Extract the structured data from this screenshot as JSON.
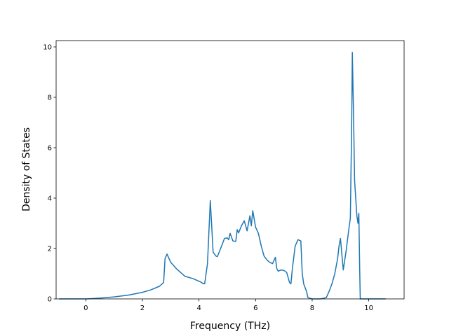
{
  "chart_data": {
    "type": "line",
    "title": "",
    "xlabel": "Frequency (THz)",
    "ylabel": "Density of States",
    "xlim": [
      -1.05,
      11.25
    ],
    "ylim": [
      0,
      10.25
    ],
    "xticks": [
      0,
      2,
      4,
      6,
      8,
      10
    ],
    "yticks": [
      0,
      2,
      4,
      6,
      8,
      10
    ],
    "xtick_labels": [
      "0",
      "2",
      "4",
      "6",
      "8",
      "10"
    ],
    "ytick_labels": [
      "0",
      "2",
      "4",
      "6",
      "8",
      "10"
    ],
    "grid": false,
    "line_color": "#1f77b4",
    "series": [
      {
        "x": [
          -0.95,
          -0.5,
          0,
          0.2,
          0.5,
          1.0,
          1.5,
          2.0,
          2.3,
          2.6,
          2.75,
          2.8,
          2.87,
          3.0,
          3.1,
          3.2,
          3.5,
          3.8,
          4.0,
          4.08,
          4.15,
          4.2,
          4.3,
          4.4,
          4.5,
          4.6,
          4.65,
          4.8,
          4.9,
          5.0,
          5.05,
          5.1,
          5.2,
          5.3,
          5.35,
          5.4,
          5.5,
          5.6,
          5.7,
          5.8,
          5.85,
          5.9,
          6.0,
          6.1,
          6.2,
          6.3,
          6.4,
          6.5,
          6.6,
          6.7,
          6.75,
          6.8,
          6.9,
          7.0,
          7.1,
          7.2,
          7.25,
          7.3,
          7.4,
          7.5,
          7.6,
          7.65,
          7.7,
          7.8,
          7.85,
          8.0,
          8.3,
          8.5,
          8.6,
          8.7,
          8.8,
          8.9,
          8.95,
          9.0,
          9.1,
          9.2,
          9.3,
          9.35,
          9.4,
          9.42,
          9.46,
          9.5,
          9.58,
          9.62,
          9.65,
          9.68,
          9.7,
          10.0,
          10.6
        ],
        "y": [
          0,
          0,
          0,
          0.01,
          0.03,
          0.08,
          0.15,
          0.26,
          0.36,
          0.5,
          0.65,
          1.6,
          1.78,
          1.45,
          1.33,
          1.2,
          0.9,
          0.8,
          0.7,
          0.66,
          0.6,
          0.6,
          1.4,
          3.9,
          1.85,
          1.7,
          1.68,
          2.1,
          2.4,
          2.42,
          2.35,
          2.6,
          2.3,
          2.28,
          2.75,
          2.62,
          2.9,
          3.1,
          2.7,
          3.3,
          2.9,
          3.5,
          2.85,
          2.6,
          2.1,
          1.7,
          1.55,
          1.45,
          1.4,
          1.65,
          1.2,
          1.1,
          1.15,
          1.13,
          1.05,
          0.65,
          0.6,
          1.2,
          2.1,
          2.35,
          2.3,
          1.0,
          0.6,
          0.3,
          0.05,
          0,
          0,
          0.05,
          0.3,
          0.6,
          1.0,
          1.6,
          2.1,
          2.4,
          1.15,
          1.9,
          2.8,
          3.2,
          7.2,
          9.78,
          7.5,
          4.7,
          3.3,
          3.0,
          3.4,
          1.2,
          0,
          0,
          0
        ]
      }
    ]
  }
}
